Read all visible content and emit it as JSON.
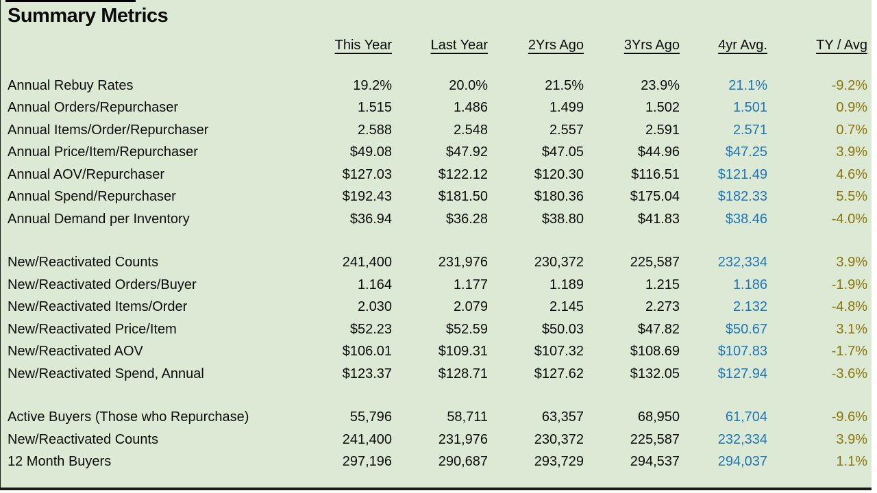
{
  "title": "Summary Metrics",
  "columns": [
    "This Year",
    "Last Year",
    "2Yrs Ago",
    "3Yrs Ago",
    "4yr Avg.",
    "TY / Avg"
  ],
  "palette": {
    "background": "#dcead5",
    "text": "#0a0a0a",
    "avg_column": "#1f74b5",
    "ty_avg_column": "#8c7408"
  },
  "sections": [
    {
      "name": "repurchaser-metrics",
      "rows": [
        {
          "label": "Annual Rebuy Rates",
          "values": [
            "19.2%",
            "20.0%",
            "21.5%",
            "23.9%",
            "21.1%",
            "-9.2%"
          ]
        },
        {
          "label": "Annual Orders/Repurchaser",
          "values": [
            "1.515",
            "1.486",
            "1.499",
            "1.502",
            "1.501",
            "0.9%"
          ]
        },
        {
          "label": "Annual Items/Order/Repurchaser",
          "values": [
            "2.588",
            "2.548",
            "2.557",
            "2.591",
            "2.571",
            "0.7%"
          ]
        },
        {
          "label": "Annual Price/Item/Repurchaser",
          "values": [
            "$49.08",
            "$47.92",
            "$47.05",
            "$44.96",
            "$47.25",
            "3.9%"
          ]
        },
        {
          "label": "Annual AOV/Repurchaser",
          "values": [
            "$127.03",
            "$122.12",
            "$120.30",
            "$116.51",
            "$121.49",
            "4.6%"
          ]
        },
        {
          "label": "Annual Spend/Repurchaser",
          "values": [
            "$192.43",
            "$181.50",
            "$180.36",
            "$175.04",
            "$182.33",
            "5.5%"
          ]
        },
        {
          "label": "Annual Demand per Inventory",
          "values": [
            "$36.94",
            "$36.28",
            "$38.80",
            "$41.83",
            "$38.46",
            "-4.0%"
          ]
        }
      ]
    },
    {
      "name": "new-reactivated-metrics",
      "rows": [
        {
          "label": "New/Reactivated Counts",
          "values": [
            "241,400",
            "231,976",
            "230,372",
            "225,587",
            "232,334",
            "3.9%"
          ]
        },
        {
          "label": "New/Reactivated Orders/Buyer",
          "values": [
            "1.164",
            "1.177",
            "1.189",
            "1.215",
            "1.186",
            "-1.9%"
          ]
        },
        {
          "label": "New/Reactivated Items/Order",
          "values": [
            "2.030",
            "2.079",
            "2.145",
            "2.273",
            "2.132",
            "-4.8%"
          ]
        },
        {
          "label": "New/Reactivated Price/Item",
          "values": [
            "$52.23",
            "$52.59",
            "$50.03",
            "$47.82",
            "$50.67",
            "3.1%"
          ]
        },
        {
          "label": "New/Reactivated AOV",
          "values": [
            "$106.01",
            "$109.31",
            "$107.32",
            "$108.69",
            "$107.83",
            "-1.7%"
          ]
        },
        {
          "label": "New/Reactivated Spend, Annual",
          "values": [
            "$123.37",
            "$128.71",
            "$127.62",
            "$132.05",
            "$127.94",
            "-3.6%"
          ]
        }
      ]
    },
    {
      "name": "buyer-counts",
      "rows": [
        {
          "label": "Active Buyers (Those who Repurchase)",
          "values": [
            "55,796",
            "58,711",
            "63,357",
            "68,950",
            "61,704",
            "-9.6%"
          ]
        },
        {
          "label": "New/Reactivated Counts",
          "values": [
            "241,400",
            "231,976",
            "230,372",
            "225,587",
            "232,334",
            "3.9%"
          ]
        },
        {
          "label": "12 Month Buyers",
          "values": [
            "297,196",
            "290,687",
            "293,729",
            "294,537",
            "294,037",
            "1.1%"
          ]
        }
      ]
    }
  ]
}
